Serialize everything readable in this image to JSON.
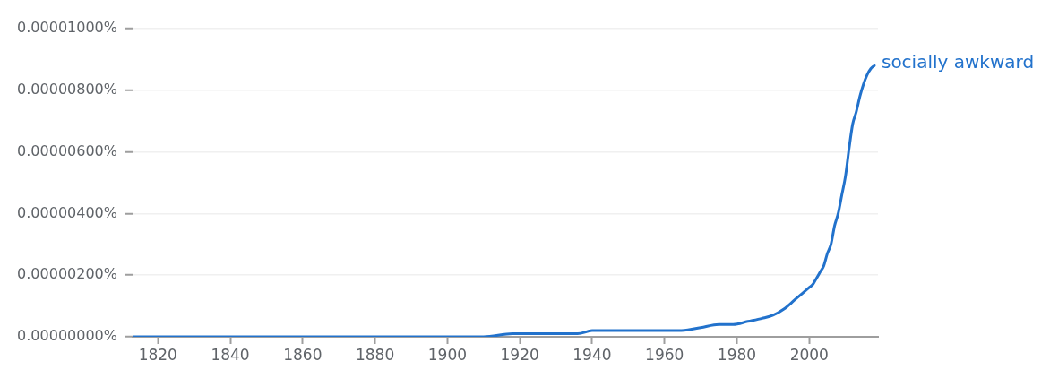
{
  "chart_data": {
    "type": "line",
    "x": [
      1813,
      1850,
      1890,
      1910,
      1918,
      1930,
      1936,
      1940,
      1945,
      1950,
      1960,
      1964,
      1970,
      1975,
      1979,
      1983,
      1987,
      1990,
      1993,
      1996,
      2000,
      2001,
      2002,
      2003,
      2004,
      2005,
      2006,
      2007,
      2008,
      2009,
      2010,
      2011,
      2012,
      2013,
      2014,
      2015,
      2016,
      2017,
      2018
    ],
    "series": [
      {
        "name": "socially awkward",
        "color": "#2272cc",
        "values": [
          0,
          0,
          0,
          0,
          1e-07,
          1e-07,
          1e-07,
          2e-07,
          2e-07,
          2e-07,
          2e-07,
          2e-07,
          3e-07,
          4e-07,
          4e-07,
          5e-07,
          6e-07,
          7e-07,
          9e-07,
          1.2e-06,
          1.6e-06,
          1.7e-06,
          1.9e-06,
          2.1e-06,
          2.3e-06,
          2.7e-06,
          3e-06,
          3.6e-06,
          4e-06,
          4.6e-06,
          5.2e-06,
          6.1e-06,
          6.9e-06,
          7.3e-06,
          7.8e-06,
          8.2e-06,
          8.5e-06,
          8.7e-06,
          8.8e-06
        ]
      }
    ],
    "xlim": [
      1813,
      2019
    ],
    "ylim": [
      0,
      1e-05
    ],
    "xticks": [
      1820,
      1840,
      1860,
      1880,
      1900,
      1920,
      1940,
      1960,
      1980,
      2000
    ],
    "yticks": [
      {
        "value": 0,
        "label": "0.00000000%"
      },
      {
        "value": 2e-06,
        "label": "0.00000200%"
      },
      {
        "value": 4e-06,
        "label": "0.00000400%"
      },
      {
        "value": 6e-06,
        "label": "0.00000600%"
      },
      {
        "value": 8e-06,
        "label": "0.00000800%"
      },
      {
        "value": 1e-05,
        "label": "0.00001000%"
      }
    ],
    "grid": "y",
    "marker": "none",
    "line_style": "solid"
  }
}
